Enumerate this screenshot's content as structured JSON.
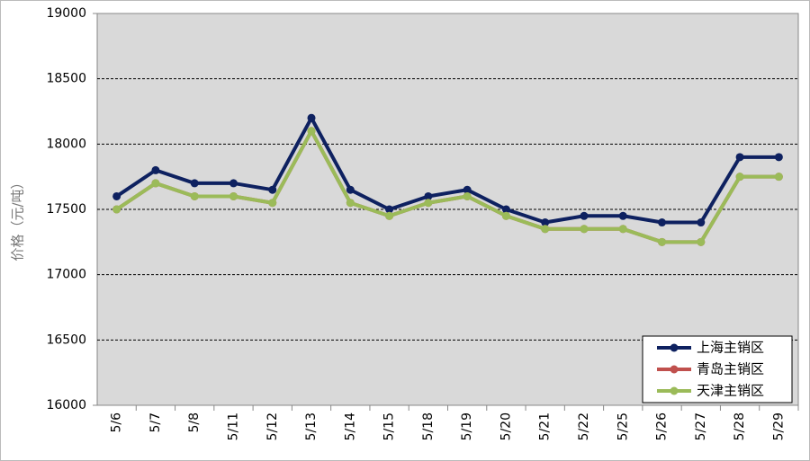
{
  "chart_data": {
    "type": "line",
    "y_label": "价格（元/吨）",
    "categories": [
      "5/6",
      "5/7",
      "5/8",
      "5/11",
      "5/12",
      "5/13",
      "5/14",
      "5/15",
      "5/18",
      "5/19",
      "5/20",
      "5/21",
      "5/22",
      "5/25",
      "5/26",
      "5/27",
      "5/28",
      "5/29"
    ],
    "series": [
      {
        "name": "上海主销区",
        "color": "#0e2160",
        "values": [
          17600,
          17800,
          17700,
          17700,
          17650,
          18200,
          17650,
          17500,
          17600,
          17650,
          17500,
          17400,
          17450,
          17450,
          17400,
          17400,
          17900,
          17900
        ]
      },
      {
        "name": "青岛主销区",
        "color": "#c0504d",
        "values": [
          17500,
          17700,
          17600,
          17600,
          17550,
          18100,
          17550,
          17450,
          17550,
          17600,
          17450,
          17350,
          17350,
          17350,
          17250,
          17250,
          17750,
          17750
        ]
      },
      {
        "name": "天津主销区",
        "color": "#9bbb59",
        "values": [
          17500,
          17700,
          17600,
          17600,
          17550,
          18100,
          17550,
          17450,
          17550,
          17600,
          17450,
          17350,
          17350,
          17350,
          17250,
          17250,
          17750,
          17750
        ]
      }
    ],
    "ylim": [
      16000,
      19000
    ],
    "yticks": [
      16000,
      16500,
      17000,
      17500,
      18000,
      18500,
      19000
    ],
    "grid": true,
    "legend": "bottom-right"
  }
}
